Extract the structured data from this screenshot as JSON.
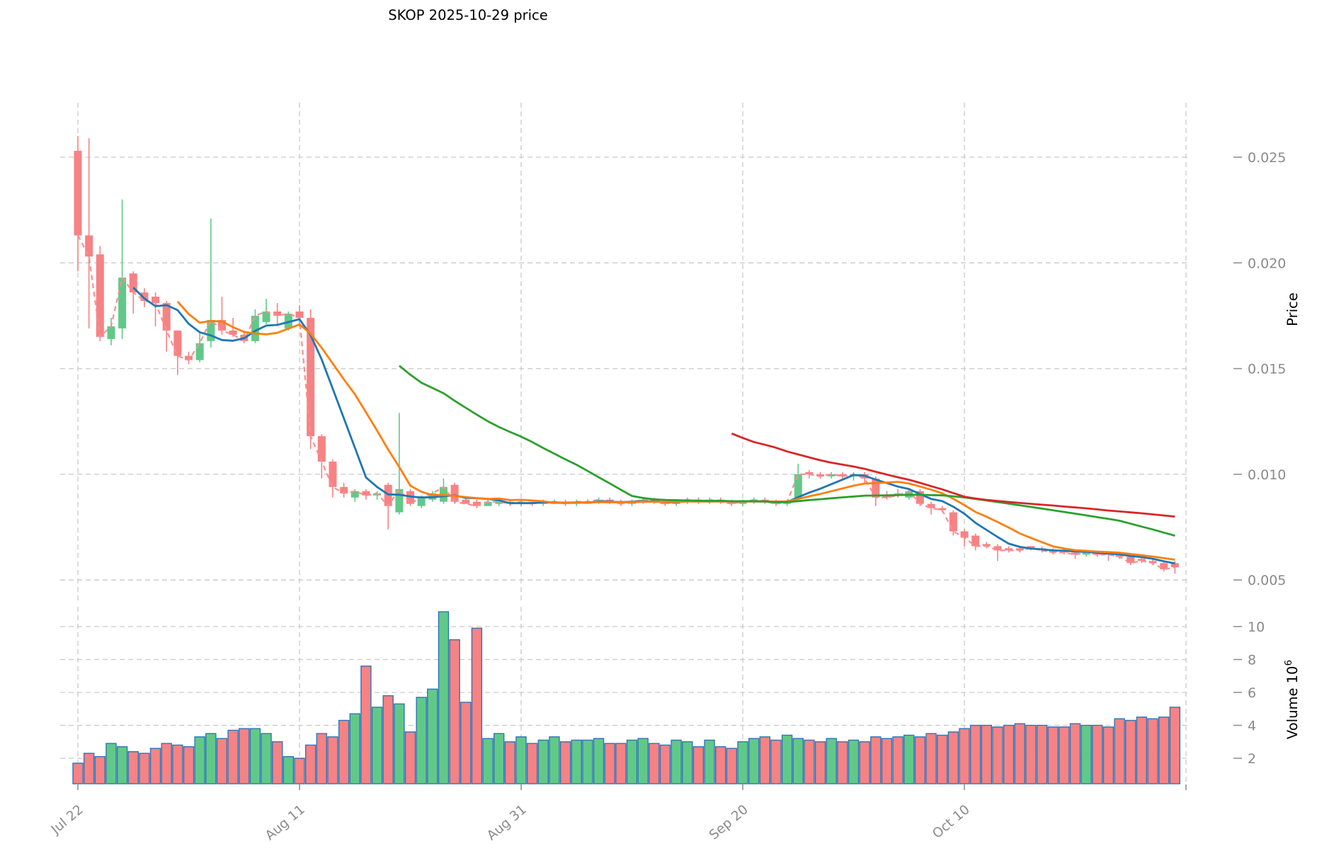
{
  "title": "SKOP  2025-10-29  price",
  "axes": {
    "price_axis_label": "Price",
    "volume_axis_label": "Volume",
    "volume_axis_multiplier": "10",
    "volume_axis_multiplier_exp": "6",
    "price_ticks": [
      0.005,
      0.01,
      0.015,
      0.02,
      0.025
    ],
    "price_tick_labels": [
      "0.005",
      "0.010",
      "0.015",
      "0.020",
      "0.025"
    ],
    "volume_ticks": [
      2,
      4,
      6,
      8,
      10
    ],
    "volume_tick_labels": [
      "2",
      "4",
      "6",
      "8",
      "10"
    ],
    "x_ticks": [
      {
        "index": 0,
        "label": "Jul 22"
      },
      {
        "index": 20,
        "label": "Aug 11"
      },
      {
        "index": 40,
        "label": "Aug 31"
      },
      {
        "index": 60,
        "label": "Sep 20"
      },
      {
        "index": 80,
        "label": "Oct 10"
      }
    ],
    "x_grid_extra_index": 100
  },
  "colors": {
    "up": "#61c988",
    "down": "#f68284",
    "volume_edge": "#2e75b6",
    "grid": "#c9c9c9",
    "tick_text": "#8a8a8a",
    "title_text": "#000000",
    "ma_blue": "#1f77b4",
    "ma_orange": "#ff7f0e",
    "ma_green": "#2ca02c",
    "ma_red": "#d62728",
    "close_dashed": "#f98f90"
  },
  "chart_data": {
    "type": "candlestick",
    "note": "daily OHLC, price in quote units, volume in millions; columns = [date, open, high, low, close, volume]",
    "price_ylim": [
      0.0045,
      0.0272
    ],
    "volume_ylim": [
      0.45,
      11.6
    ],
    "grid": true,
    "ma_series": [
      {
        "name": "MA6",
        "window": 6,
        "color": "#1f77b4"
      },
      {
        "name": "MA10",
        "window": 10,
        "color": "#ff7f0e"
      },
      {
        "name": "MA30",
        "window": 30,
        "color": "#2ca02c"
      },
      {
        "name": "MA60",
        "window": 60,
        "color": "#d62728"
      }
    ],
    "close_line": {
      "name": "Close",
      "style": "dashed",
      "color": "#f98f90"
    },
    "candles": [
      [
        "2025-07-22",
        0.0253,
        0.026,
        0.0196,
        0.0213,
        1.7
      ],
      [
        "2025-07-23",
        0.0213,
        0.0259,
        0.0169,
        0.0203,
        2.3
      ],
      [
        "2025-07-24",
        0.0204,
        0.0208,
        0.0163,
        0.0165,
        2.1
      ],
      [
        "2025-07-25",
        0.0164,
        0.0174,
        0.0161,
        0.017,
        2.9
      ],
      [
        "2025-07-26",
        0.0169,
        0.023,
        0.0164,
        0.0193,
        2.7
      ],
      [
        "2025-07-27",
        0.0195,
        0.0196,
        0.0176,
        0.0186,
        2.4
      ],
      [
        "2025-07-28",
        0.0186,
        0.0188,
        0.0179,
        0.0182,
        2.3
      ],
      [
        "2025-07-29",
        0.0184,
        0.0186,
        0.017,
        0.0181,
        2.6
      ],
      [
        "2025-07-30",
        0.0181,
        0.0182,
        0.0158,
        0.0168,
        2.9
      ],
      [
        "2025-07-31",
        0.0168,
        0.0168,
        0.0147,
        0.0156,
        2.8
      ],
      [
        "2025-08-01",
        0.0156,
        0.0158,
        0.0152,
        0.0154,
        2.7
      ],
      [
        "2025-08-02",
        0.0154,
        0.0167,
        0.0153,
        0.0162,
        3.3
      ],
      [
        "2025-08-03",
        0.0163,
        0.0221,
        0.016,
        0.0173,
        3.5
      ],
      [
        "2025-08-04",
        0.0173,
        0.0184,
        0.0166,
        0.0168,
        3.2
      ],
      [
        "2025-08-05",
        0.0168,
        0.0174,
        0.0165,
        0.0166,
        3.7
      ],
      [
        "2025-08-06",
        0.0166,
        0.0168,
        0.0162,
        0.0163,
        3.8
      ],
      [
        "2025-08-07",
        0.0163,
        0.0178,
        0.0162,
        0.0175,
        3.8
      ],
      [
        "2025-08-08",
        0.0172,
        0.0183,
        0.0171,
        0.0177,
        3.5
      ],
      [
        "2025-08-09",
        0.0177,
        0.0181,
        0.017,
        0.0175,
        3.0
      ],
      [
        "2025-08-10",
        0.0169,
        0.0177,
        0.0168,
        0.0176,
        2.1
      ],
      [
        "2025-08-11",
        0.0177,
        0.018,
        0.017,
        0.0174,
        2.0
      ],
      [
        "2025-08-12",
        0.0174,
        0.0178,
        0.0112,
        0.0118,
        2.8
      ],
      [
        "2025-08-13",
        0.0118,
        0.0119,
        0.0098,
        0.0106,
        3.5
      ],
      [
        "2025-08-14",
        0.0106,
        0.0107,
        0.0089,
        0.0094,
        3.3
      ],
      [
        "2025-08-15",
        0.0094,
        0.0096,
        0.0089,
        0.0091,
        4.3
      ],
      [
        "2025-08-16",
        0.0089,
        0.0093,
        0.0087,
        0.0092,
        4.7
      ],
      [
        "2025-08-17",
        0.0092,
        0.0093,
        0.0088,
        0.009,
        7.6
      ],
      [
        "2025-08-18",
        0.009,
        0.0092,
        0.0088,
        0.0091,
        5.1
      ],
      [
        "2025-08-19",
        0.0095,
        0.0096,
        0.0074,
        0.0085,
        5.8
      ],
      [
        "2025-08-20",
        0.0082,
        0.0129,
        0.0081,
        0.0093,
        5.3
      ],
      [
        "2025-08-21",
        0.0092,
        0.0093,
        0.0085,
        0.0086,
        3.6
      ],
      [
        "2025-08-22",
        0.0085,
        0.009,
        0.0084,
        0.0089,
        5.7
      ],
      [
        "2025-08-23",
        0.0088,
        0.0092,
        0.0087,
        0.0091,
        6.2
      ],
      [
        "2025-08-24",
        0.0087,
        0.0098,
        0.0086,
        0.0094,
        10.9
      ],
      [
        "2025-08-25",
        0.0095,
        0.0096,
        0.0086,
        0.0087,
        9.2
      ],
      [
        "2025-08-26",
        0.0088,
        0.0089,
        0.0086,
        0.0086,
        5.4
      ],
      [
        "2025-08-27",
        0.0087,
        0.0088,
        0.0084,
        0.0085,
        9.9
      ],
      [
        "2025-08-28",
        0.0085,
        0.0088,
        0.0085,
        0.0087,
        3.2
      ],
      [
        "2025-08-29",
        0.0086,
        0.0088,
        0.0085,
        0.0087,
        3.5
      ],
      [
        "2025-08-30",
        0.0087,
        0.0088,
        0.0085,
        0.0086,
        3.0
      ],
      [
        "2025-08-31",
        0.0086,
        0.0088,
        0.0085,
        0.0087,
        3.3
      ],
      [
        "2025-09-01",
        0.0087,
        0.0088,
        0.0085,
        0.0086,
        2.9
      ],
      [
        "2025-09-02",
        0.0086,
        0.0088,
        0.0085,
        0.0087,
        3.1
      ],
      [
        "2025-09-03",
        0.0086,
        0.0088,
        0.0086,
        0.0087,
        3.3
      ],
      [
        "2025-09-04",
        0.0087,
        0.0088,
        0.0085,
        0.0086,
        3.0
      ],
      [
        "2025-09-05",
        0.0086,
        0.0088,
        0.0085,
        0.0087,
        3.1
      ],
      [
        "2025-09-06",
        0.0086,
        0.0088,
        0.0086,
        0.0087,
        3.1
      ],
      [
        "2025-09-07",
        0.0087,
        0.0089,
        0.0086,
        0.0088,
        3.2
      ],
      [
        "2025-09-08",
        0.0088,
        0.0089,
        0.0086,
        0.0087,
        2.9
      ],
      [
        "2025-09-09",
        0.0087,
        0.0088,
        0.0085,
        0.0086,
        2.9
      ],
      [
        "2025-09-10",
        0.0086,
        0.0088,
        0.0085,
        0.0087,
        3.1
      ],
      [
        "2025-09-11",
        0.0087,
        0.0089,
        0.0086,
        0.0088,
        3.2
      ],
      [
        "2025-09-12",
        0.0088,
        0.0089,
        0.0086,
        0.0087,
        2.9
      ],
      [
        "2025-09-13",
        0.0087,
        0.0088,
        0.0085,
        0.0086,
        2.8
      ],
      [
        "2025-09-14",
        0.0086,
        0.0088,
        0.0085,
        0.0087,
        3.1
      ],
      [
        "2025-09-15",
        0.0087,
        0.0089,
        0.0086,
        0.0088,
        3.0
      ],
      [
        "2025-09-16",
        0.0088,
        0.0089,
        0.0086,
        0.0087,
        2.7
      ],
      [
        "2025-09-17",
        0.0087,
        0.0089,
        0.0086,
        0.0088,
        3.1
      ],
      [
        "2025-09-18",
        0.0088,
        0.0089,
        0.0086,
        0.0087,
        2.7
      ],
      [
        "2025-09-19",
        0.0087,
        0.0088,
        0.0085,
        0.0086,
        2.6
      ],
      [
        "2025-09-20",
        0.0086,
        0.0088,
        0.0085,
        0.0087,
        3.0
      ],
      [
        "2025-09-21",
        0.0087,
        0.0089,
        0.0086,
        0.0088,
        3.2
      ],
      [
        "2025-09-22",
        0.0088,
        0.0089,
        0.0086,
        0.0087,
        3.3
      ],
      [
        "2025-09-23",
        0.0087,
        0.0088,
        0.0085,
        0.0086,
        3.1
      ],
      [
        "2025-09-24",
        0.0086,
        0.0088,
        0.0085,
        0.0087,
        3.4
      ],
      [
        "2025-09-25",
        0.0089,
        0.0105,
        0.0088,
        0.01,
        3.2
      ],
      [
        "2025-09-26",
        0.0101,
        0.0102,
        0.0098,
        0.01,
        3.1
      ],
      [
        "2025-09-27",
        0.01,
        0.0101,
        0.0098,
        0.0099,
        3.0
      ],
      [
        "2025-09-28",
        0.0099,
        0.0101,
        0.0098,
        0.01,
        3.2
      ],
      [
        "2025-09-29",
        0.01,
        0.0101,
        0.0098,
        0.0099,
        3.0
      ],
      [
        "2025-09-30",
        0.0099,
        0.0101,
        0.0097,
        0.01,
        3.1
      ],
      [
        "2025-10-01",
        0.01,
        0.0101,
        0.0096,
        0.0098,
        3.0
      ],
      [
        "2025-10-02",
        0.0098,
        0.0099,
        0.0085,
        0.0089,
        3.3
      ],
      [
        "2025-10-03",
        0.009,
        0.0092,
        0.0088,
        0.0089,
        3.2
      ],
      [
        "2025-10-04",
        0.0091,
        0.0093,
        0.0089,
        0.009,
        3.3
      ],
      [
        "2025-10-05",
        0.0089,
        0.0093,
        0.0088,
        0.0092,
        3.4
      ],
      [
        "2025-10-06",
        0.0092,
        0.0093,
        0.0085,
        0.0086,
        3.3
      ],
      [
        "2025-10-07",
        0.0086,
        0.0087,
        0.0081,
        0.0084,
        3.5
      ],
      [
        "2025-10-08",
        0.0084,
        0.0085,
        0.0082,
        0.0083,
        3.4
      ],
      [
        "2025-10-09",
        0.0082,
        0.0083,
        0.0071,
        0.0073,
        3.6
      ],
      [
        "2025-10-10",
        0.0073,
        0.0074,
        0.0066,
        0.007,
        3.8
      ],
      [
        "2025-10-11",
        0.0071,
        0.0072,
        0.0064,
        0.0066,
        4.0
      ],
      [
        "2025-10-12",
        0.0067,
        0.0068,
        0.0065,
        0.0066,
        4.0
      ],
      [
        "2025-10-13",
        0.0066,
        0.0067,
        0.0059,
        0.0064,
        3.9
      ],
      [
        "2025-10-14",
        0.0065,
        0.0066,
        0.0063,
        0.0064,
        4.0
      ],
      [
        "2025-10-15",
        0.0065,
        0.0066,
        0.0063,
        0.0064,
        4.1
      ],
      [
        "2025-10-16",
        0.0066,
        0.0066,
        0.0064,
        0.0065,
        4.0
      ],
      [
        "2025-10-17",
        0.0065,
        0.0066,
        0.0063,
        0.0064,
        4.0
      ],
      [
        "2025-10-18",
        0.0064,
        0.0065,
        0.0062,
        0.0063,
        3.9
      ],
      [
        "2025-10-19",
        0.0064,
        0.0065,
        0.0062,
        0.0063,
        3.9
      ],
      [
        "2025-10-20",
        0.0063,
        0.0064,
        0.006,
        0.0062,
        4.1
      ],
      [
        "2025-10-21",
        0.0062,
        0.0064,
        0.0061,
        0.0063,
        4.0
      ],
      [
        "2025-10-22",
        0.0063,
        0.0064,
        0.0061,
        0.0062,
        4.0
      ],
      [
        "2025-10-23",
        0.0063,
        0.0063,
        0.0059,
        0.0062,
        3.9
      ],
      [
        "2025-10-24",
        0.0062,
        0.0063,
        0.006,
        0.0061,
        4.4
      ],
      [
        "2025-10-25",
        0.0061,
        0.0062,
        0.0057,
        0.0058,
        4.3
      ],
      [
        "2025-10-26",
        0.006,
        0.0061,
        0.0058,
        0.0059,
        4.5
      ],
      [
        "2025-10-27",
        0.0059,
        0.006,
        0.0057,
        0.0058,
        4.4
      ],
      [
        "2025-10-28",
        0.0058,
        0.0059,
        0.0054,
        0.0055,
        4.5
      ],
      [
        "2025-10-29",
        0.0058,
        0.0059,
        0.0053,
        0.0056,
        5.1
      ]
    ]
  }
}
